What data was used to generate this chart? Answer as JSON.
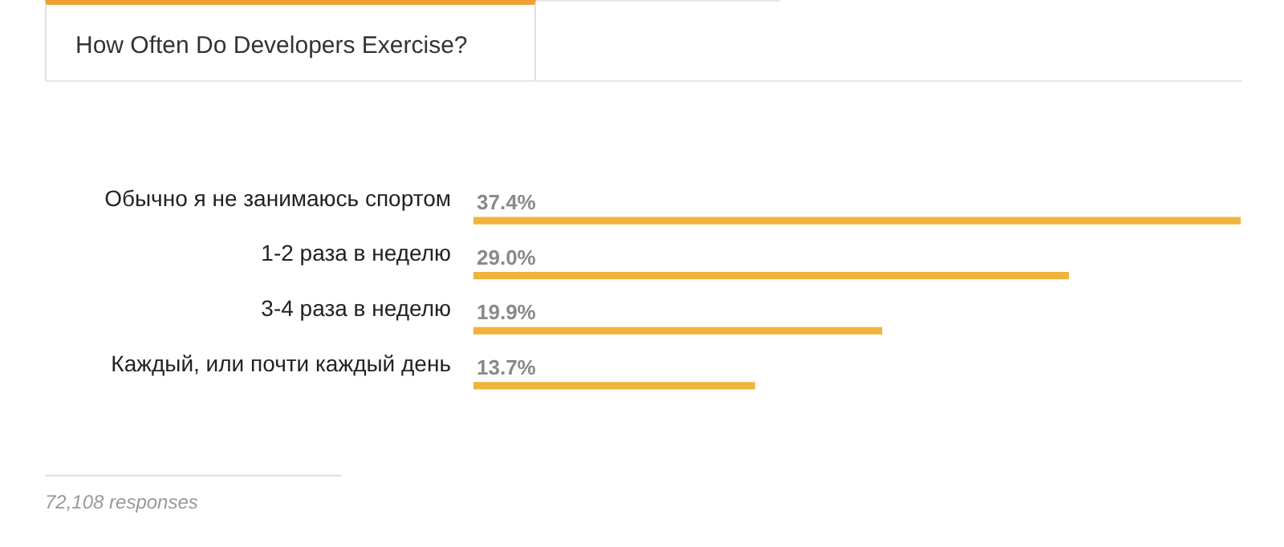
{
  "chart_data": {
    "type": "bar",
    "orientation": "horizontal",
    "title": "How Often Do Developers Exercise?",
    "categories": [
      "Обычно я не занимаюсь спортом",
      "1-2 раза в неделю",
      "3-4 раза в неделю",
      "Каждый, или почти каждый день"
    ],
    "values": [
      37.4,
      29.0,
      19.9,
      13.7
    ],
    "value_labels": [
      "37.4%",
      "29.0%",
      "19.9%",
      "13.7%"
    ],
    "color": "#f0b43c",
    "annotations": [
      "72,108 responses"
    ]
  }
}
